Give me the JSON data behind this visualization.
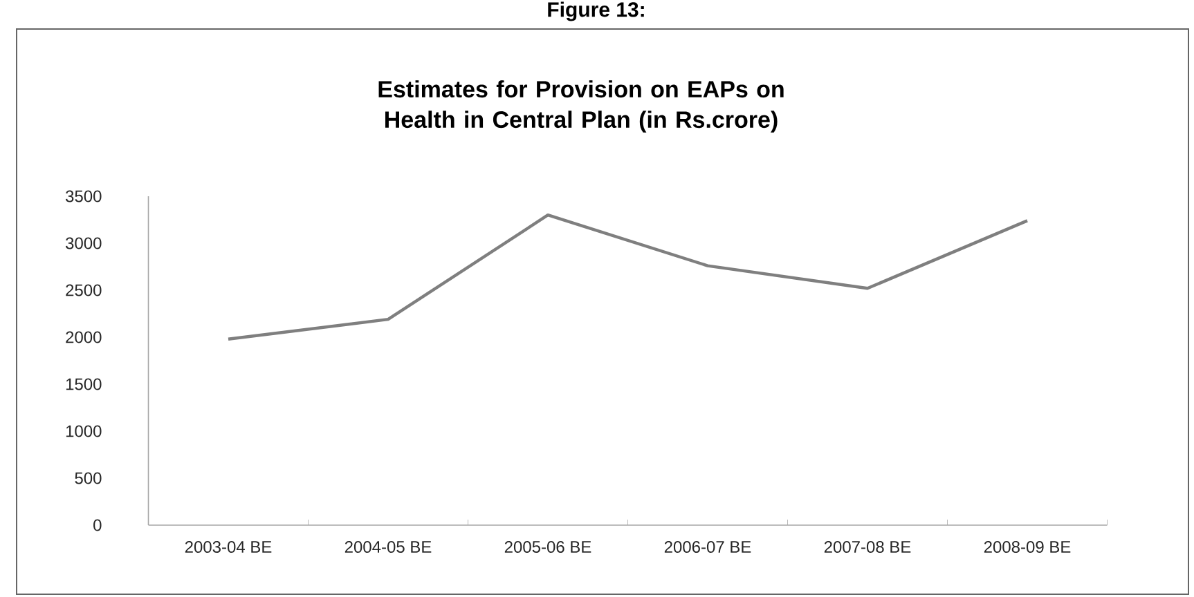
{
  "chart_data": {
    "type": "line",
    "title": "Estimates for Provision on EAPs on Health in Central Plan   (in Rs.crore)",
    "annotations": [
      "Figure 13:"
    ],
    "categories": [
      "2003-04 BE",
      "2004-05 BE",
      "2005-06 BE",
      "2006-07 BE",
      "2007-08 BE",
      "2008-09 BE"
    ],
    "series": [
      {
        "color": "#7f7f7f",
        "values": [
          1980,
          2190,
          3300,
          2760,
          2520,
          3240
        ]
      }
    ],
    "ylim": [
      0,
      3500
    ],
    "yticks": [
      0,
      500,
      1000,
      1500,
      2000,
      2500,
      3000,
      3500
    ],
    "grid": false,
    "marker": "none",
    "line_style": "solid"
  }
}
